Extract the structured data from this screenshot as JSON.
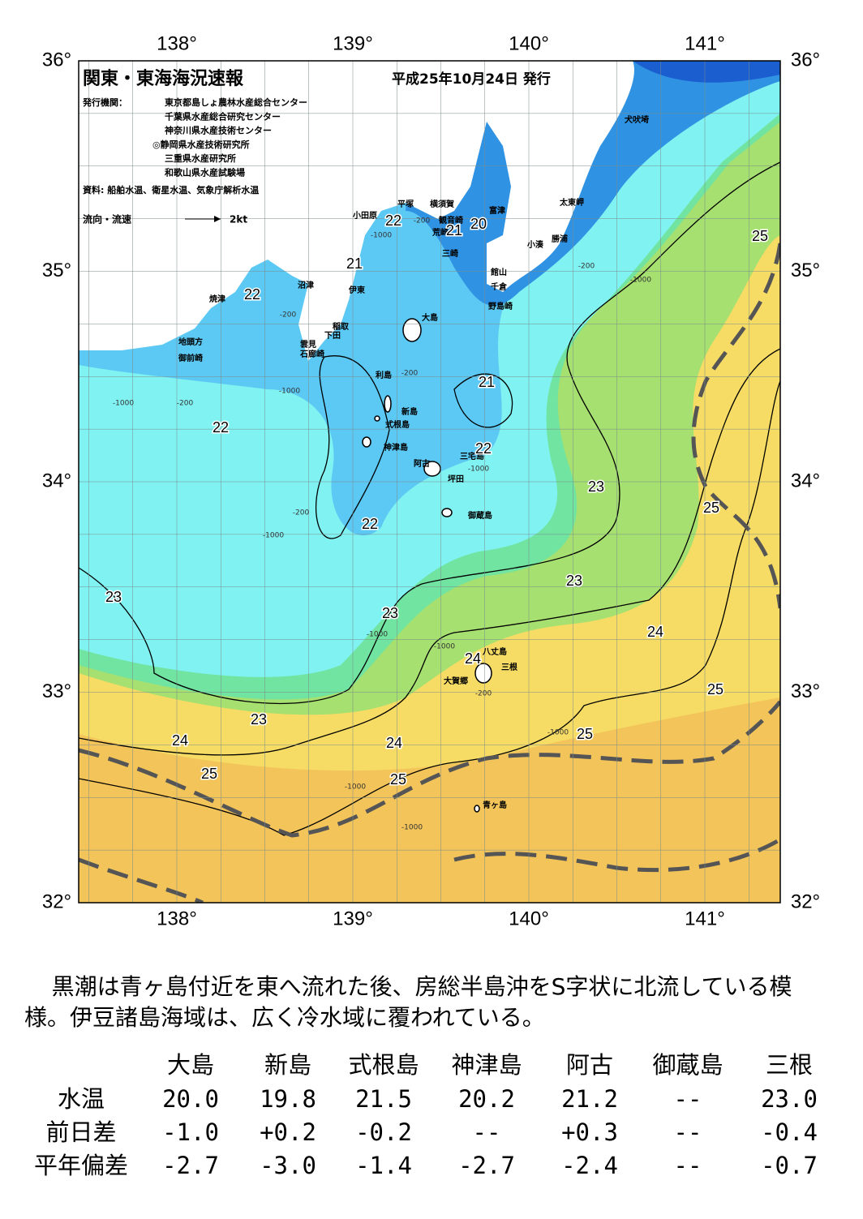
{
  "header": {
    "title": "関東・東海海況速報",
    "date": "平成25年10月24日 発行",
    "issuer_label": "発行機関：",
    "issuers": [
      "東京都島しょ農林水産総合センター",
      "千葉県水産総合研究センター",
      "神奈川県水産技術センター",
      "◎静岡県水産技術研究所",
      "三重県水産研究所",
      "和歌山県水産試験場"
    ],
    "source": "資料: 船舶水温、衛星水温、気象庁解析水温",
    "legend": "流向・流速",
    "legend_scale": "2kt"
  },
  "map": {
    "lon_labels": [
      "138°",
      "139°",
      "140°",
      "141°"
    ],
    "lat_labels": [
      "36°",
      "35°",
      "34°",
      "33°",
      "32°"
    ],
    "places": [
      "犬吠埼",
      "太東岬",
      "勝浦",
      "小湊",
      "富津",
      "観音崎",
      "横須賀",
      "平塚",
      "小田原",
      "荒崎",
      "三崎",
      "館山",
      "千倉",
      "野島崎",
      "沼津",
      "伊東",
      "焼津",
      "稲取",
      "下田",
      "雲見",
      "石廊崎",
      "地頭方",
      "御前崎",
      "大島",
      "利島",
      "新島",
      "式根島",
      "神津島",
      "三宅島",
      "阿古",
      "坪田",
      "御蔵島",
      "八丈島",
      "三根",
      "大賀郷",
      "青ヶ島"
    ],
    "temp_labels": [
      22,
      20,
      21,
      21,
      22,
      21,
      22,
      22,
      23,
      22,
      25,
      25,
      23,
      23,
      23,
      24,
      24,
      25,
      23,
      24,
      24,
      25,
      25,
      25
    ],
    "depth_labels": [
      "-200",
      "-1000",
      "-200",
      "-1000",
      "-200",
      "-1000",
      "-200",
      "-1000",
      "-200",
      "-1000",
      "-1000",
      "-1000",
      "-200",
      "-1000",
      "-1000",
      "-1000",
      "-200",
      "-1000"
    ]
  },
  "summary": "黒潮は青ヶ島付近を東へ流れた後、房総半島沖をS字状に北流している模様。伊豆諸島海域は、広く冷水域に覆われている。",
  "table": {
    "columns": [
      "大島",
      "新島",
      "式根島",
      "神津島",
      "阿古",
      "御蔵島",
      "三根"
    ],
    "rows": [
      {
        "label": "水温",
        "values": [
          "20.0",
          "19.8",
          "21.5",
          "20.2",
          "21.2",
          "--",
          "23.0"
        ]
      },
      {
        "label": "前日差",
        "values": [
          "-1.0",
          "+0.2",
          "-0.2",
          "--",
          "+0.3",
          "--",
          "-0.4"
        ]
      },
      {
        "label": "平年偏差",
        "values": [
          "-2.7",
          "-3.0",
          "-1.4",
          "-2.7",
          "-2.4",
          "--",
          "-0.7"
        ]
      }
    ]
  }
}
